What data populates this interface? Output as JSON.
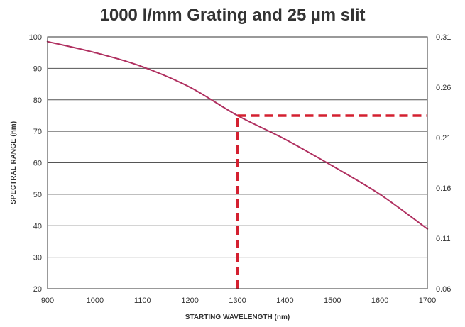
{
  "chart_data": {
    "type": "line",
    "title": "1000 l/mm Grating and 25 µm slit",
    "xlabel": "STARTING WAVELENGTH (nm)",
    "ylabel": "SPECTRAL RANGE (nm)",
    "y2label": "",
    "xlim": [
      900,
      1700
    ],
    "ylim": [
      20,
      100
    ],
    "y2lim": [
      0.06,
      0.31
    ],
    "x_ticks": [
      "900",
      "1000",
      "1100",
      "1200",
      "1300",
      "1400",
      "1500",
      "1600",
      "1700"
    ],
    "y_ticks": [
      "20",
      "30",
      "40",
      "50",
      "60",
      "70",
      "80",
      "90",
      "100"
    ],
    "y2_ticks": [
      "0.06",
      "0.11",
      "0.16",
      "0.21",
      "0.26",
      "0.31"
    ],
    "grid": "horizontal",
    "series": [
      {
        "color": "#b03060",
        "x": [
          900,
          1000,
          1100,
          1200,
          1300,
          1400,
          1500,
          1600,
          1700
        ],
        "y": [
          98.5,
          95,
          90.5,
          84,
          75,
          67.5,
          59,
          50,
          39
        ]
      }
    ],
    "annotation": {
      "color": "#d42030",
      "x": 1300,
      "y": 75
    }
  }
}
